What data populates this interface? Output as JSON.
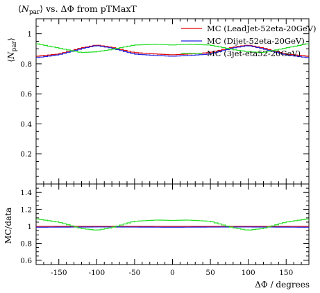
{
  "chart_data": [
    {
      "type": "line",
      "title": "⟨N_par⟩ vs. ΔΦ from pTMaxT",
      "ylabel": "⟨N_par⟩",
      "xlabel": "ΔΦ / degrees",
      "xlim": [
        -180,
        180
      ],
      "ylim": [
        0,
        1.1
      ],
      "yticks": [
        0.2,
        0.4,
        0.6,
        0.8,
        1
      ],
      "ytick_labels": [
        "0.2",
        "0.4",
        "0.6",
        "0.8",
        "1"
      ],
      "legend_position": "top-right",
      "series": [
        {
          "name": "MC (LeadJet-52eta-20GeV)",
          "color": "#e00000",
          "x": [
            -180,
            -150,
            -120,
            -100,
            -80,
            -50,
            -20,
            0,
            20,
            50,
            80,
            100,
            120,
            150,
            180
          ],
          "values": [
            0.85,
            0.865,
            0.905,
            0.925,
            0.91,
            0.875,
            0.865,
            0.86,
            0.865,
            0.875,
            0.91,
            0.925,
            0.905,
            0.865,
            0.85
          ]
        },
        {
          "name": "MC (Dijet-52eta-20GeV)",
          "color": "#2020e0",
          "x": [
            -180,
            -150,
            -120,
            -100,
            -80,
            -50,
            -20,
            0,
            20,
            50,
            80,
            100,
            120,
            150,
            180
          ],
          "values": [
            0.84,
            0.86,
            0.9,
            0.922,
            0.905,
            0.865,
            0.855,
            0.85,
            0.855,
            0.865,
            0.905,
            0.922,
            0.9,
            0.86,
            0.84
          ]
        },
        {
          "name": "MC (3jet-eta52-20GeV)",
          "color": "#22dd22",
          "x": [
            -180,
            -150,
            -120,
            -100,
            -80,
            -50,
            -20,
            0,
            20,
            50,
            80,
            100,
            120,
            150,
            180
          ],
          "values": [
            0.935,
            0.905,
            0.875,
            0.88,
            0.895,
            0.925,
            0.93,
            0.925,
            0.93,
            0.925,
            0.895,
            0.88,
            0.875,
            0.905,
            0.935
          ]
        }
      ]
    },
    {
      "type": "line",
      "ylabel": "MC/data",
      "xlabel": "ΔΦ / degrees",
      "xlim": [
        -180,
        180
      ],
      "ylim": [
        0.55,
        1.5
      ],
      "yticks": [
        0.6,
        0.8,
        1,
        1.2,
        1.4
      ],
      "ytick_labels": [
        "0.6",
        "0.8",
        "1",
        "1.2",
        "1.4"
      ],
      "xticks": [
        -150,
        -100,
        -50,
        0,
        50,
        100,
        150
      ],
      "xtick_labels": [
        "-150",
        "-100",
        "-50",
        "0",
        "50",
        "100",
        "150"
      ],
      "series": [
        {
          "name": "MC (LeadJet-52eta-20GeV)",
          "color": "#e00000",
          "x": [
            -180,
            -90,
            0,
            90,
            180
          ],
          "values": [
            1.0,
            1.0,
            1.0,
            1.0,
            1.0
          ]
        },
        {
          "name": "MC (Dijet-52eta-20GeV)",
          "color": "#2020e0",
          "x": [
            -180,
            -90,
            0,
            90,
            180
          ],
          "values": [
            0.99,
            0.993,
            0.99,
            0.993,
            0.99
          ]
        },
        {
          "name": "MC (3jet-eta52-20GeV)",
          "color": "#22dd22",
          "x": [
            -180,
            -150,
            -120,
            -100,
            -80,
            -50,
            -20,
            0,
            20,
            50,
            80,
            100,
            120,
            150,
            180
          ],
          "values": [
            1.09,
            1.05,
            0.975,
            0.955,
            0.985,
            1.06,
            1.075,
            1.07,
            1.075,
            1.06,
            0.985,
            0.955,
            0.975,
            1.05,
            1.09
          ]
        }
      ]
    }
  ]
}
